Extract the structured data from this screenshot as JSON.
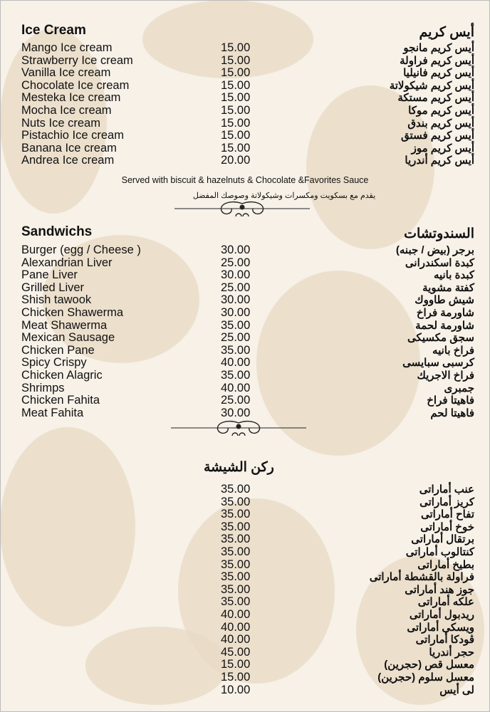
{
  "ice_cream": {
    "title_en": "Ice Cream",
    "title_ar": "أيس كريم",
    "items": [
      {
        "en": "Mango Ice cream",
        "price": "15.00",
        "ar": "أيس كريم مانجو"
      },
      {
        "en": "Strawberry Ice cream",
        "price": "15.00",
        "ar": "أيس كريم فراولة"
      },
      {
        "en": "Vanilla Ice cream",
        "price": "15.00",
        "ar": "أيس كريم فانيليا"
      },
      {
        "en": "Chocolate Ice cream",
        "price": "15.00",
        "ar": "أيس كريم شيكولاتة"
      },
      {
        "en": "Mesteka Ice cream",
        "price": "15.00",
        "ar": "أيس كريم مستكة"
      },
      {
        "en": "Mocha Ice cream",
        "price": "15.00",
        "ar": "أيس كريم موكا"
      },
      {
        "en": "Nuts Ice cream",
        "price": "15.00",
        "ar": "أيس كريم بندق"
      },
      {
        "en": "Pistachio Ice cream",
        "price": "15.00",
        "ar": "أيس كريم فستق"
      },
      {
        "en": "Banana Ice cream",
        "price": "15.00",
        "ar": "أيس كريم موز"
      },
      {
        "en": "Andrea Ice cream",
        "price": "20.00",
        "ar": "أيس كريم أندريا"
      }
    ],
    "note_en": "Served with biscuit & hazelnuts & Chocolate &Favorites Sauce",
    "note_ar": "يقدم مع بسكويت ومكسرات وشيكولاتة وصوصك المفضل"
  },
  "sandwiches": {
    "title_en": "Sandwichs",
    "title_ar": "السندوتشات",
    "items": [
      {
        "en": "Burger (egg / Cheese )",
        "price": "30.00",
        "ar": "برجر (بيض / جبنه)"
      },
      {
        "en": "Alexandrian Liver",
        "price": "25.00",
        "ar": "كبدة اسكندرانى"
      },
      {
        "en": "Pane Liver",
        "price": "30.00",
        "ar": "كبدة بانيه"
      },
      {
        "en": "Grilled Liver",
        "price": "25.00",
        "ar": "كفتة مشوية"
      },
      {
        "en": "Shish tawook",
        "price": "30.00",
        "ar": "شيش طاووك"
      },
      {
        "en": "Chicken Shawerma",
        "price": "30.00",
        "ar": "شاورمة فراخ"
      },
      {
        "en": "Meat Shawerma",
        "price": "35.00",
        "ar": "شاورمة لحمة"
      },
      {
        "en": "Mexican Sausage",
        "price": "25.00",
        "ar": "سجق مكسيكى"
      },
      {
        "en": "Chicken Pane",
        "price": "35.00",
        "ar": "فراخ بانيه"
      },
      {
        "en": "Spicy Crispy",
        "price": "40.00",
        "ar": "كرسبى سبايسى"
      },
      {
        "en": "Chicken Alagric",
        "price": "35.00",
        "ar": "فراخ الاجريك"
      },
      {
        "en": "Shrimps",
        "price": "40.00",
        "ar": "جمبرى"
      },
      {
        "en": "Chicken Fahita",
        "price": "25.00",
        "ar": "فاهيتا فراخ"
      },
      {
        "en": "Meat Fahita",
        "price": "30.00",
        "ar": "فاهيتا لحم"
      }
    ]
  },
  "shisha": {
    "title_ar": "ركن الشيشة",
    "items": [
      {
        "price": "35.00",
        "ar": "عنب أماراتى"
      },
      {
        "price": "35.00",
        "ar": "كريز أماراتى"
      },
      {
        "price": "35.00",
        "ar": "تفاح أماراتى"
      },
      {
        "price": "35.00",
        "ar": "خوخ أماراتى"
      },
      {
        "price": "35.00",
        "ar": "برتقال أماراتى"
      },
      {
        "price": "35.00",
        "ar": "كنتالوب أماراتى"
      },
      {
        "price": "35.00",
        "ar": "بطيخ أماراتى"
      },
      {
        "price": "35.00",
        "ar": "فراولة بالقشطة أماراتى"
      },
      {
        "price": "35.00",
        "ar": "جوز هند أماراتى"
      },
      {
        "price": "35.00",
        "ar": "علكه أماراتى"
      },
      {
        "price": "40.00",
        "ar": "ريدبول أماراتى"
      },
      {
        "price": "40.00",
        "ar": "ويسكى أماراتى"
      },
      {
        "price": "40.00",
        "ar": "ڤودكا أماراتى"
      },
      {
        "price": "45.00",
        "ar": "حجر أندريا"
      },
      {
        "price": "15.00",
        "ar": "معسل قص (حجرين)"
      },
      {
        "price": "15.00",
        "ar": "معسل سلوم (حجرين)"
      },
      {
        "price": "10.00",
        "ar": "لى أيس"
      }
    ]
  },
  "colors": {
    "background": "#f7f1e8",
    "pattern": "#e8dac4",
    "text": "#111111"
  }
}
